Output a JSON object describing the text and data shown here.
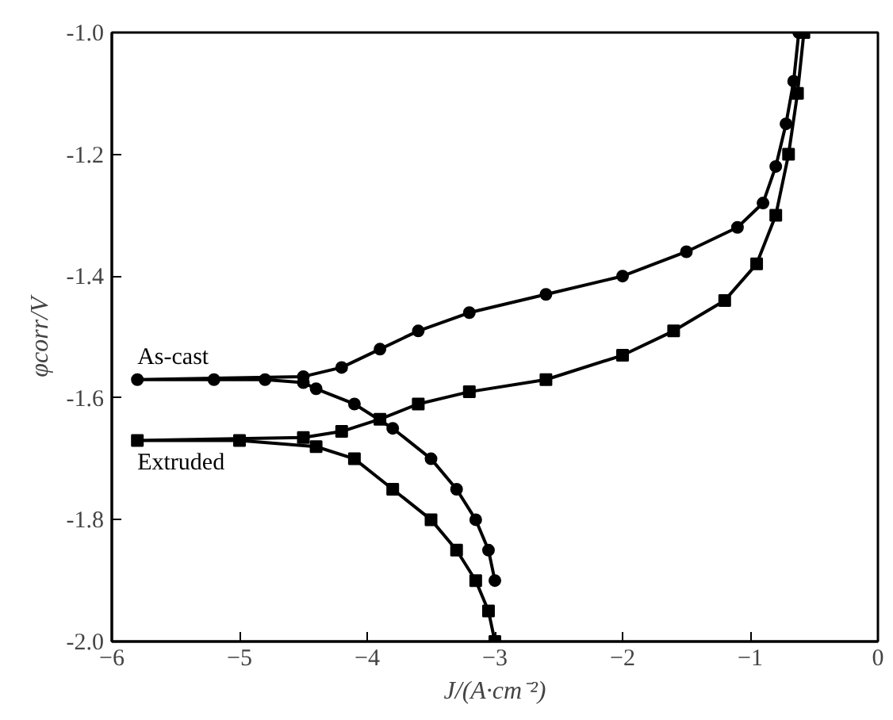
{
  "chart_data": {
    "type": "line",
    "xlabel": "J/(A·cm⁻²)",
    "ylabel": "φcorr/V",
    "xlim": [
      -6,
      0
    ],
    "ylim": [
      -2.0,
      -1.0
    ],
    "xticks": [
      -6,
      -5,
      -4,
      -3,
      -2,
      -1,
      0
    ],
    "yticks": [
      {
        "value": -2.0,
        "label": "-2.0"
      },
      {
        "value": -1.8,
        "label": "-1.8"
      },
      {
        "value": -1.6,
        "label": "-1.6"
      },
      {
        "value": -1.4,
        "label": "-1.4"
      },
      {
        "value": -1.2,
        "label": "-1.2"
      },
      {
        "value": -1.0,
        "label": "-1.0"
      }
    ],
    "grid": false,
    "line_style": "solid",
    "series": [
      {
        "name": "As-cast",
        "color": "#000000",
        "marker": "circle",
        "x": [
          -3.0,
          -3.05,
          -3.15,
          -3.3,
          -3.5,
          -3.8,
          -4.1,
          -4.4,
          -4.5,
          -4.8,
          -5.2,
          -5.8,
          -4.5,
          -4.2,
          -3.9,
          -3.6,
          -3.2,
          -2.6,
          -2.0,
          -1.5,
          -1.1,
          -0.9,
          -0.8,
          -0.72,
          -0.66,
          -0.62
        ],
        "values": [
          -1.9,
          -1.85,
          -1.8,
          -1.75,
          -1.7,
          -1.65,
          -1.61,
          -1.585,
          -1.575,
          -1.57,
          -1.57,
          -1.57,
          -1.565,
          -1.55,
          -1.52,
          -1.49,
          -1.46,
          -1.43,
          -1.4,
          -1.36,
          -1.32,
          -1.28,
          -1.22,
          -1.15,
          -1.08,
          -1.0
        ]
      },
      {
        "name": "Extruded",
        "color": "#000000",
        "marker": "square",
        "x": [
          -3.0,
          -3.05,
          -3.15,
          -3.3,
          -3.5,
          -3.8,
          -4.1,
          -4.4,
          -5.0,
          -5.8,
          -4.5,
          -4.2,
          -3.9,
          -3.6,
          -3.2,
          -2.6,
          -2.0,
          -1.6,
          -1.2,
          -0.95,
          -0.8,
          -0.7,
          -0.63,
          -0.58
        ],
        "values": [
          -2.0,
          -1.95,
          -1.9,
          -1.85,
          -1.8,
          -1.75,
          -1.7,
          -1.68,
          -1.67,
          -1.67,
          -1.665,
          -1.655,
          -1.635,
          -1.61,
          -1.59,
          -1.57,
          -1.53,
          -1.49,
          -1.44,
          -1.38,
          -1.3,
          -1.2,
          -1.1,
          -1.0
        ]
      }
    ]
  }
}
